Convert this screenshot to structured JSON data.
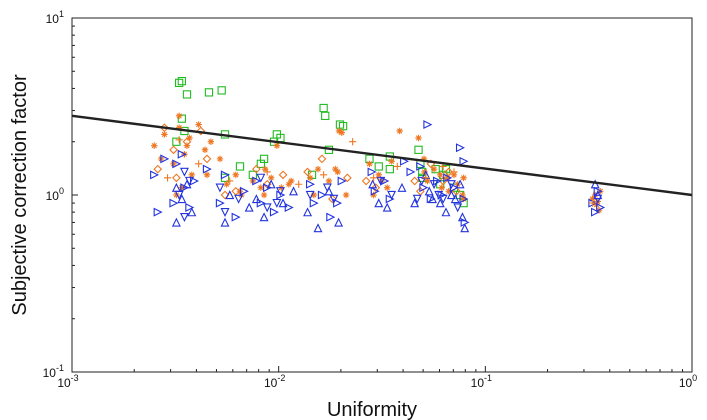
{
  "chart_data": {
    "type": "scatter",
    "title": "",
    "xlabel": "Uniformity",
    "ylabel": "Subjective correction factor",
    "x_scale": "log",
    "y_scale": "log",
    "xlim": [
      0.001,
      1
    ],
    "ylim": [
      0.1,
      10
    ],
    "grid": false,
    "legend": "none",
    "x_ticks": [
      {
        "value": 0.001,
        "base": "10",
        "exp": "-3"
      },
      {
        "value": 0.01,
        "base": "10",
        "exp": "-2"
      },
      {
        "value": 0.1,
        "base": "10",
        "exp": "-1"
      },
      {
        "value": 1,
        "base": "10",
        "exp": "0"
      }
    ],
    "y_ticks": [
      {
        "value": 0.1,
        "base": "10",
        "exp": "-1"
      },
      {
        "value": 1,
        "base": "10",
        "exp": "0"
      },
      {
        "value": 10,
        "base": "10",
        "exp": "1"
      }
    ],
    "fit_line": {
      "color": "#222222",
      "x": [
        0.001,
        1
      ],
      "y": [
        2.8,
        1.0
      ]
    },
    "series": [
      {
        "marker": "square",
        "color": "#22bb22",
        "points": [
          [
            0.0033,
            4.3
          ],
          [
            0.0034,
            4.4
          ],
          [
            0.0036,
            3.7
          ],
          [
            0.0034,
            2.7
          ],
          [
            0.0032,
            2.0
          ],
          [
            0.0035,
            2.3
          ],
          [
            0.0046,
            3.8
          ],
          [
            0.0053,
            3.9
          ],
          [
            0.0055,
            2.2
          ],
          [
            0.0065,
            1.45
          ],
          [
            0.0075,
            1.3
          ],
          [
            0.0082,
            1.5
          ],
          [
            0.0085,
            1.6
          ],
          [
            0.0095,
            2.0
          ],
          [
            0.0098,
            2.2
          ],
          [
            0.0102,
            2.1
          ],
          [
            0.0145,
            1.3
          ],
          [
            0.0165,
            3.1
          ],
          [
            0.0168,
            2.8
          ],
          [
            0.0175,
            1.8
          ],
          [
            0.0198,
            2.5
          ],
          [
            0.0205,
            2.45
          ],
          [
            0.0275,
            1.6
          ],
          [
            0.0305,
            1.45
          ],
          [
            0.0345,
            1.65
          ],
          [
            0.0475,
            1.8
          ],
          [
            0.0485,
            1.5
          ],
          [
            0.0495,
            1.35
          ],
          [
            0.0495,
            1.25
          ],
          [
            0.0575,
            1.4
          ],
          [
            0.0605,
            1.15
          ],
          [
            0.0625,
            1.3
          ],
          [
            0.0645,
            1.4
          ],
          [
            0.0705,
            1.1
          ],
          [
            0.0755,
            1.0
          ],
          [
            0.0785,
            0.9
          ],
          [
            0.0345,
            1.4
          ],
          [
            0.0055,
            1.25
          ]
        ]
      },
      {
        "marker": "star",
        "color": "#ee7722",
        "points": [
          [
            0.0025,
            1.9
          ],
          [
            0.0027,
            1.6
          ],
          [
            0.0028,
            2.2
          ],
          [
            0.0031,
            1.5
          ],
          [
            0.0033,
            2.4
          ],
          [
            0.0033,
            2.8
          ],
          [
            0.0035,
            1.7
          ],
          [
            0.0036,
            1.9
          ],
          [
            0.0037,
            2.1
          ],
          [
            0.0038,
            1.3
          ],
          [
            0.0041,
            2.5
          ],
          [
            0.0044,
            1.8
          ],
          [
            0.0047,
            2.0
          ],
          [
            0.0032,
            1.0
          ],
          [
            0.0034,
            1.1
          ],
          [
            0.0052,
            1.6
          ],
          [
            0.0056,
            1.15
          ],
          [
            0.0062,
            1.3
          ],
          [
            0.0066,
            1.0
          ],
          [
            0.0075,
            1.2
          ],
          [
            0.0082,
            1.1
          ],
          [
            0.0086,
            1.4
          ],
          [
            0.0092,
            1.25
          ],
          [
            0.0098,
            1.9
          ],
          [
            0.0103,
            1.1
          ],
          [
            0.0112,
            1.15
          ],
          [
            0.0142,
            1.25
          ],
          [
            0.0148,
            1.0
          ],
          [
            0.0155,
            1.4
          ],
          [
            0.0175,
            1.2
          ],
          [
            0.0188,
            1.4
          ],
          [
            0.0193,
            1.35
          ],
          [
            0.0196,
            2.3
          ],
          [
            0.0202,
            2.25
          ],
          [
            0.0212,
            1.0
          ],
          [
            0.0275,
            1.5
          ],
          [
            0.0288,
            1.0
          ],
          [
            0.0305,
            1.3
          ],
          [
            0.0315,
            1.2
          ],
          [
            0.0335,
            1.1
          ],
          [
            0.0352,
            1.55
          ],
          [
            0.0385,
            2.3
          ],
          [
            0.0475,
            2.1
          ],
          [
            0.0505,
            1.6
          ],
          [
            0.0508,
            1.35
          ],
          [
            0.0525,
            1.2
          ],
          [
            0.0565,
            1.4
          ],
          [
            0.0605,
            1.3
          ],
          [
            0.0615,
            1.1
          ],
          [
            0.0655,
            1.25
          ],
          [
            0.0665,
            1.05
          ],
          [
            0.0705,
            1.3
          ],
          [
            0.0735,
            1.15
          ],
          [
            0.0775,
            1.0
          ],
          [
            0.0785,
            1.25
          ],
          [
            0.0785,
            0.95
          ],
          [
            0.0115,
            1.2
          ],
          [
            0.0085,
            1.0
          ],
          [
            0.0045,
            1.3
          ],
          [
            0.0065,
            1.05
          ],
          [
            0.33,
            0.95
          ],
          [
            0.345,
            0.88
          ],
          [
            0.355,
            0.82
          ],
          [
            0.34,
            1.0
          ],
          [
            0.36,
            1.05
          ],
          [
            0.35,
            0.92
          ]
        ]
      },
      {
        "marker": "diamond",
        "color": "#ee7722",
        "points": [
          [
            0.0028,
            2.4
          ],
          [
            0.0031,
            1.8
          ],
          [
            0.0036,
            2.0
          ],
          [
            0.0042,
            2.3
          ],
          [
            0.0045,
            1.6
          ],
          [
            0.0026,
            1.4
          ],
          [
            0.0062,
            1.05
          ],
          [
            0.0078,
            1.4
          ],
          [
            0.0088,
            1.15
          ],
          [
            0.0138,
            1.35
          ],
          [
            0.0162,
            1.6
          ],
          [
            0.0182,
            0.95
          ],
          [
            0.0265,
            1.2
          ],
          [
            0.0295,
            1.1
          ],
          [
            0.0455,
            1.2
          ],
          [
            0.0545,
            1.5
          ],
          [
            0.0625,
            1.2
          ],
          [
            0.0725,
            1.05
          ],
          [
            0.0032,
            1.25
          ],
          [
            0.0055,
            1.0
          ],
          [
            0.0105,
            1.3
          ],
          [
            0.0215,
            1.25
          ],
          [
            0.0485,
            1.05
          ],
          [
            0.0665,
            1.35
          ]
        ]
      },
      {
        "marker": "triangle-right",
        "color": "#2233dd",
        "points": [
          [
            0.0025,
            1.3
          ],
          [
            0.0026,
            0.8
          ],
          [
            0.0028,
            1.6
          ],
          [
            0.0031,
            0.9
          ],
          [
            0.0032,
            1.5
          ],
          [
            0.0034,
            1.7
          ],
          [
            0.0035,
            1.1
          ],
          [
            0.0037,
            0.85
          ],
          [
            0.0039,
            1.2
          ],
          [
            0.0045,
            1.4
          ],
          [
            0.0052,
            0.9
          ],
          [
            0.0055,
            1.3
          ],
          [
            0.0062,
            0.75
          ],
          [
            0.0068,
            1.05
          ],
          [
            0.0078,
            1.2
          ],
          [
            0.0082,
            0.9
          ],
          [
            0.0088,
            1.1
          ],
          [
            0.0095,
            0.8
          ],
          [
            0.0102,
            1.0
          ],
          [
            0.0112,
            0.85
          ],
          [
            0.0142,
            1.15
          ],
          [
            0.0148,
            0.9
          ],
          [
            0.0162,
            1.0
          ],
          [
            0.0178,
            0.75
          ],
          [
            0.0192,
            0.9
          ],
          [
            0.0202,
            1.2
          ],
          [
            0.0282,
            1.35
          ],
          [
            0.0292,
            1.05
          ],
          [
            0.0325,
            1.2
          ],
          [
            0.0345,
            0.95
          ],
          [
            0.0405,
            1.55
          ],
          [
            0.0435,
            1.35
          ],
          [
            0.0485,
            1.45
          ],
          [
            0.0502,
            1.1
          ],
          [
            0.0525,
            2.5
          ],
          [
            0.0545,
            0.95
          ],
          [
            0.0585,
            1.2
          ],
          [
            0.0615,
            1.0
          ],
          [
            0.0655,
            1.25
          ],
          [
            0.0705,
            1.1
          ],
          [
            0.0755,
            1.85
          ],
          [
            0.0785,
            0.95
          ],
          [
            0.0785,
            1.55
          ],
          [
            0.0795,
            0.7
          ],
          [
            0.33,
            0.9
          ],
          [
            0.35,
            1.05
          ],
          [
            0.36,
            0.85
          ],
          [
            0.34,
            0.8
          ]
        ]
      },
      {
        "marker": "triangle-down",
        "color": "#2233dd",
        "points": [
          [
            0.0033,
            1.0
          ],
          [
            0.0035,
            1.35
          ],
          [
            0.0037,
            1.2
          ],
          [
            0.0052,
            1.1
          ],
          [
            0.0064,
            0.95
          ],
          [
            0.0082,
            1.25
          ],
          [
            0.0088,
            0.85
          ],
          [
            0.0102,
            1.05
          ],
          [
            0.0142,
            1.0
          ],
          [
            0.0185,
            0.95
          ],
          [
            0.0312,
            1.2
          ],
          [
            0.0352,
            1.0
          ],
          [
            0.0492,
            1.2
          ],
          [
            0.0565,
            1.15
          ],
          [
            0.0625,
            0.95
          ],
          [
            0.0685,
            1.15
          ],
          [
            0.0735,
            0.85
          ],
          [
            0.0035,
            0.75
          ],
          [
            0.0055,
            0.8
          ],
          [
            0.0098,
            0.9
          ],
          [
            0.0172,
            1.1
          ],
          [
            0.0468,
            0.95
          ],
          [
            0.0595,
            1.0
          ],
          [
            0.35,
            0.95
          ]
        ]
      },
      {
        "marker": "triangle-up",
        "color": "#2233dd",
        "points": [
          [
            0.0032,
            0.7
          ],
          [
            0.0034,
            0.95
          ],
          [
            0.0036,
            1.15
          ],
          [
            0.0038,
            0.8
          ],
          [
            0.0055,
            0.7
          ],
          [
            0.0058,
            1.0
          ],
          [
            0.0072,
            0.85
          ],
          [
            0.0085,
            0.75
          ],
          [
            0.0092,
            1.15
          ],
          [
            0.0105,
            0.9
          ],
          [
            0.0138,
            0.8
          ],
          [
            0.0155,
            0.65
          ],
          [
            0.0175,
            1.05
          ],
          [
            0.0195,
            0.7
          ],
          [
            0.0305,
            0.9
          ],
          [
            0.0335,
            0.85
          ],
          [
            0.0455,
            0.9
          ],
          [
            0.0515,
            1.3
          ],
          [
            0.0555,
            0.95
          ],
          [
            0.0605,
            0.9
          ],
          [
            0.0645,
            0.8
          ],
          [
            0.0715,
            0.95
          ],
          [
            0.0775,
            0.75
          ],
          [
            0.0795,
            0.65
          ],
          [
            0.0032,
            1.1
          ],
          [
            0.0078,
            0.95
          ],
          [
            0.0118,
            1.05
          ],
          [
            0.0285,
            1.15
          ],
          [
            0.0395,
            1.1
          ],
          [
            0.0535,
            1.05
          ],
          [
            0.0685,
            1.0
          ],
          [
            0.0755,
            1.15
          ],
          [
            0.35,
            1.0
          ],
          [
            0.34,
            1.15
          ]
        ]
      },
      {
        "marker": "plus",
        "color": "#ee7722",
        "points": [
          [
            0.0029,
            1.25
          ],
          [
            0.0033,
            2.05
          ],
          [
            0.0041,
            1.5
          ],
          [
            0.0058,
            1.2
          ],
          [
            0.0088,
            1.35
          ],
          [
            0.0125,
            1.15
          ],
          [
            0.0165,
            1.3
          ],
          [
            0.0228,
            2.0
          ],
          [
            0.0288,
            1.25
          ],
          [
            0.0375,
            1.45
          ],
          [
            0.0515,
            1.25
          ],
          [
            0.0625,
            1.45
          ],
          [
            0.0705,
            1.35
          ],
          [
            0.33,
            0.9
          ]
        ]
      }
    ]
  }
}
